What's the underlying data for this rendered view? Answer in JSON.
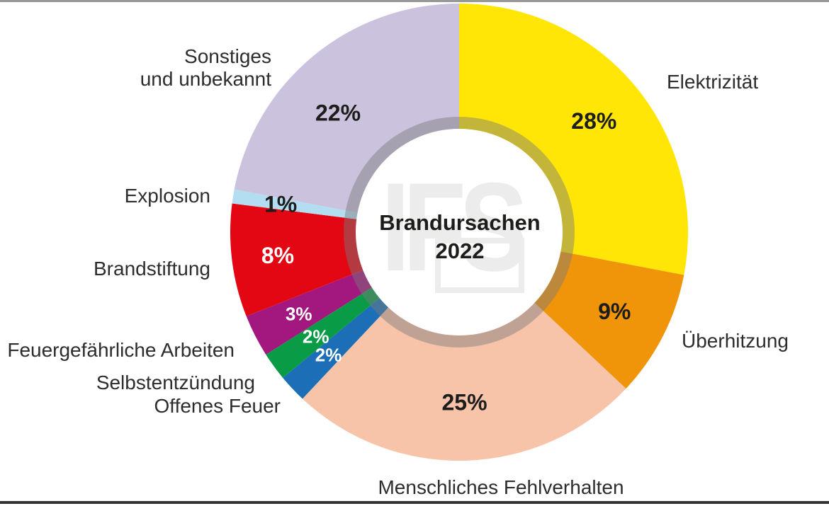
{
  "page": {
    "background": "#ffffff",
    "top_border_color": "#989898",
    "bottom_border_color": "#333333"
  },
  "chart_data": {
    "type": "pie",
    "donut": true,
    "title": "Brandursachen",
    "subtitle": "2022",
    "watermark": "IFS",
    "start_angle_deg": 0,
    "direction": "clockwise",
    "ring_overlay_color": "rgba(122,122,122,0.45)",
    "hub_color": "#ffffff",
    "segments": [
      {
        "label": "Elektrizität",
        "value": 28,
        "pct_label": "28%",
        "color": "#FFE607",
        "pct_color": "#1d1d1b",
        "label_r": 247
      },
      {
        "label": "Überhitzung",
        "value": 9,
        "pct_label": "9%",
        "color": "#F0940A",
        "pct_color": "#1d1d1b",
        "label_r": 246
      },
      {
        "label": "Menschliches Fehlverhalten",
        "value": 25,
        "pct_label": "25%",
        "color": "#F7C4AA",
        "pct_color": "#1d1d1b",
        "label_r": 240
      },
      {
        "label": "Offenes Feuer",
        "value": 2,
        "pct_label": "2%",
        "color": "#1C6FB6",
        "pct_color": "#ffffff",
        "label_r": 253,
        "small": true
      },
      {
        "label": "Selbstentzündung",
        "value": 2,
        "pct_label": "2%",
        "color": "#0A9B47",
        "pct_color": "#ffffff",
        "label_r": 250,
        "small": true
      },
      {
        "label": "Feuergefährliche Arbeiten",
        "value": 3,
        "pct_label": "3%",
        "color": "#A2187F",
        "pct_color": "#ffffff",
        "label_r": 254,
        "small": true
      },
      {
        "label": "Brandstiftung",
        "value": 8,
        "pct_label": "8%",
        "color": "#E30613",
        "pct_color": "#ffffff",
        "label_r": 258
      },
      {
        "label": "Explosion",
        "value": 1,
        "pct_label": "1%",
        "color": "#B3DDF0",
        "pct_color": "#1d1d1b",
        "label_r": 255
      },
      {
        "label": "Sonstiges und unbekannt",
        "value": 22,
        "pct_label": "22%",
        "color": "#CBC2DE",
        "pct_color": "#1d1d1b",
        "label_r": 240,
        "label_2line": "Sonstiges\nund unbekannt",
        "label_dx": -18,
        "label_dy": 16
      }
    ]
  }
}
